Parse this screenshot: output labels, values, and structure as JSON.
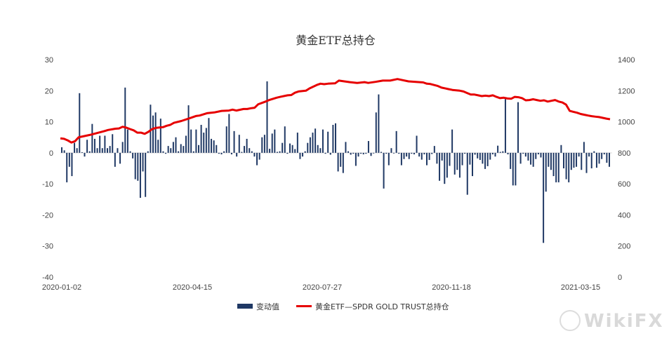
{
  "chart_data": {
    "type": "bar+line",
    "title": "黄金ETF总持仓",
    "x_ticks": [
      "2020-01-02",
      "2020-04-15",
      "2020-07-27",
      "2020-11-18",
      "2021-03-15"
    ],
    "y_left_ticks": [
      "30",
      "20",
      "10",
      "0",
      "-10",
      "-20",
      "-30",
      "-40"
    ],
    "y_right_ticks": [
      "1400",
      "1200",
      "1000",
      "800",
      "600",
      "400",
      "200",
      "0"
    ],
    "ylim_left": [
      -40,
      30
    ],
    "ylim_right": [
      0,
      1400
    ],
    "series": [
      {
        "name": "变动值",
        "type": "bar",
        "axis": "left",
        "color": "#1f3864",
        "values": [
          1.8,
          0.8,
          -9.5,
          -4.5,
          -7.5,
          3.2,
          1.5,
          19.2,
          0.2,
          -1.2,
          4.2,
          0.5,
          9.3,
          4.5,
          1.5,
          5.5,
          1.5,
          5.5,
          1.5,
          2.2,
          6,
          -4.5,
          1.5,
          -3.5,
          3.5,
          21,
          7.5,
          0.5,
          -1.8,
          -8.5,
          -9,
          -14.5,
          -6,
          -14.2,
          0.5,
          15.5,
          12,
          13,
          4.2,
          11,
          0.5,
          -0.3,
          2.2,
          1.5,
          3.5,
          5,
          0.5,
          2.8,
          2.2,
          5.5,
          15.3,
          7.5,
          0.5,
          7.5,
          2.5,
          9,
          6.5,
          8,
          11.2,
          4.5,
          4,
          2.5,
          -0.3,
          -0.5,
          0.5,
          8.5,
          12.5,
          -0.5,
          7,
          -1.2,
          5.8,
          0.3,
          2.2,
          4.5,
          1.5,
          0.5,
          -1.2,
          -4,
          -2.2,
          5,
          5.8,
          23,
          1.3,
          6.2,
          7.5,
          0.3,
          0.5,
          3.2,
          8.5,
          -0.3,
          3,
          2.5,
          1.2,
          6.5,
          -2,
          -1.2,
          0.5,
          3.2,
          5,
          6.5,
          7.8,
          2.5,
          1.5,
          7.5,
          -0.3,
          6.8,
          -0.6,
          9,
          9.5,
          -6,
          -4.5,
          -6.5,
          3.5,
          0.5,
          -0.6,
          -0.3,
          -4.2,
          -1.2,
          -0.3,
          -0.5,
          -0.3,
          3.8,
          -1,
          -0.2,
          13,
          18.8,
          0.3,
          -11.5,
          -0.3,
          -4,
          1.5,
          -0.2,
          7,
          -0.3,
          -4,
          -2,
          -1.2,
          -2,
          -0.3,
          -0.5,
          5.5,
          -1.2,
          -2.2,
          -0.5,
          -4,
          -2.3,
          -0.4,
          2.2,
          -3.5,
          -9,
          -2.5,
          -10,
          -8,
          -4.2,
          7.5,
          -7,
          -5.5,
          -8,
          -4,
          -0.3,
          -13.5,
          -3.8,
          -7.5,
          -0.6,
          -1.8,
          -2.3,
          -3.5,
          -5.2,
          -4.3,
          -2.2,
          -0.5,
          -1.2,
          2.3,
          0.3,
          0.5,
          17.3,
          -0.5,
          -5.2,
          -10.5,
          -10.5,
          16.3,
          -3.5,
          -0.3,
          -1.2,
          -2.5,
          -3.8,
          -4.5,
          -2,
          -0.5,
          -1.5,
          -29,
          -12.5,
          -4.5,
          -5.5,
          -7.5,
          -9.5,
          -9.5,
          2.5,
          -5,
          -8.5,
          -9.5,
          -5.5,
          -4.8,
          -4.5,
          -1.2,
          -5.5,
          3.5,
          -6.5,
          -1.2,
          -5,
          0.5,
          -4.8,
          -3.5,
          -2,
          -0.5,
          -3.2,
          -4.5
        ]
      },
      {
        "name": "黄金ETF—SPDR GOLD TRUST总持仓",
        "type": "line",
        "axis": "right",
        "color": "#e60000",
        "points": [
          [
            0,
            893
          ],
          [
            0.01,
            890
          ],
          [
            0.02,
            880
          ],
          [
            0.03,
            866
          ],
          [
            0.04,
            875
          ],
          [
            0.05,
            900
          ],
          [
            0.06,
            905
          ],
          [
            0.08,
            915
          ],
          [
            0.1,
            927
          ],
          [
            0.12,
            940
          ],
          [
            0.13,
            947
          ],
          [
            0.15,
            955
          ],
          [
            0.16,
            957
          ],
          [
            0.17,
            968
          ],
          [
            0.18,
            962
          ],
          [
            0.19,
            953
          ],
          [
            0.2,
            945
          ],
          [
            0.21,
            930
          ],
          [
            0.22,
            930
          ],
          [
            0.23,
            922
          ],
          [
            0.24,
            935
          ],
          [
            0.25,
            952
          ],
          [
            0.26,
            960
          ],
          [
            0.27,
            963
          ],
          [
            0.28,
            965
          ],
          [
            0.29,
            974
          ],
          [
            0.3,
            980
          ],
          [
            0.31,
            993
          ],
          [
            0.33,
            1005
          ],
          [
            0.35,
            1020
          ],
          [
            0.37,
            1037
          ],
          [
            0.38,
            1040
          ],
          [
            0.4,
            1055
          ],
          [
            0.42,
            1060
          ],
          [
            0.44,
            1070
          ],
          [
            0.46,
            1072
          ],
          [
            0.47,
            1078
          ],
          [
            0.48,
            1072
          ],
          [
            0.5,
            1082
          ],
          [
            0.51,
            1082
          ],
          [
            0.52,
            1087
          ],
          [
            0.53,
            1090
          ],
          [
            0.54,
            1113
          ],
          [
            0.56,
            1130
          ],
          [
            0.57,
            1140
          ],
          [
            0.59,
            1155
          ],
          [
            0.6,
            1160
          ],
          [
            0.62,
            1170
          ],
          [
            0.63,
            1172
          ],
          [
            0.64,
            1187
          ],
          [
            0.65,
            1195
          ],
          [
            0.67,
            1200
          ],
          [
            0.68,
            1215
          ],
          [
            0.7,
            1237
          ],
          [
            0.71,
            1245
          ],
          [
            0.72,
            1242
          ],
          [
            0.73,
            1245
          ],
          [
            0.75,
            1248
          ],
          [
            0.76,
            1265
          ],
          [
            0.77,
            1262
          ],
          [
            0.79,
            1255
          ],
          [
            0.81,
            1250
          ],
          [
            0.83,
            1255
          ],
          [
            0.84,
            1250
          ],
          [
            0.86,
            1257
          ],
          [
            0.88,
            1265
          ],
          [
            0.9,
            1265
          ],
          [
            0.92,
            1275
          ],
          [
            0.93,
            1270
          ],
          [
            0.95,
            1260
          ],
          [
            0.97,
            1257
          ],
          [
            0.99,
            1253
          ],
          [
            1.0,
            1245
          ],
          [
            1.01,
            1243
          ],
          [
            1.03,
            1230
          ],
          [
            1.04,
            1220
          ],
          [
            1.06,
            1210
          ],
          [
            1.07,
            1205
          ],
          [
            1.09,
            1200
          ],
          [
            1.1,
            1195
          ],
          [
            1.11,
            1185
          ],
          [
            1.12,
            1175
          ],
          [
            1.13,
            1175
          ],
          [
            1.14,
            1170
          ],
          [
            1.15,
            1165
          ],
          [
            1.16,
            1168
          ],
          [
            1.17,
            1165
          ],
          [
            1.18,
            1170
          ],
          [
            1.19,
            1160
          ],
          [
            1.2,
            1152
          ],
          [
            1.21,
            1155
          ],
          [
            1.22,
            1150
          ],
          [
            1.23,
            1148
          ],
          [
            1.24,
            1160
          ],
          [
            1.25,
            1158
          ],
          [
            1.26,
            1152
          ],
          [
            1.27,
            1138
          ],
          [
            1.28,
            1140
          ],
          [
            1.29,
            1145
          ],
          [
            1.3,
            1140
          ],
          [
            1.31,
            1135
          ],
          [
            1.32,
            1138
          ],
          [
            1.33,
            1130
          ],
          [
            1.34,
            1135
          ],
          [
            1.35,
            1140
          ],
          [
            1.36,
            1130
          ],
          [
            1.37,
            1124
          ],
          [
            1.38,
            1110
          ],
          [
            1.39,
            1070
          ],
          [
            1.4,
            1064
          ],
          [
            1.41,
            1058
          ],
          [
            1.42,
            1050
          ],
          [
            1.43,
            1045
          ],
          [
            1.44,
            1040
          ],
          [
            1.45,
            1036
          ],
          [
            1.46,
            1033
          ],
          [
            1.47,
            1030
          ],
          [
            1.48,
            1025
          ],
          [
            1.49,
            1020
          ],
          [
            1.5,
            1016
          ]
        ]
      }
    ],
    "legend_position": "bottom",
    "grid": false
  },
  "watermark": "WikiFX"
}
